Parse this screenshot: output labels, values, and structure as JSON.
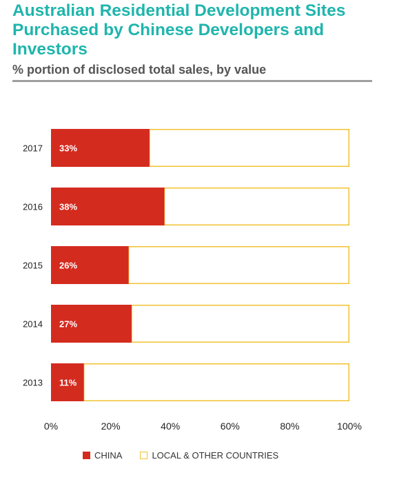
{
  "chart_data": {
    "type": "bar",
    "orientation": "horizontal",
    "stacked": true,
    "title": "Australian Residential Development Sites Purchased by Chinese Developers and Investors",
    "subtitle": "% portion of disclosed total sales, by value",
    "categories": [
      "2017",
      "2016",
      "2015",
      "2014",
      "2013"
    ],
    "series": [
      {
        "name": "CHINA",
        "values": [
          33,
          38,
          26,
          27,
          11
        ],
        "labels": [
          "33%",
          "38%",
          "26%",
          "27%",
          "11%"
        ]
      },
      {
        "name": "LOCAL & OTHER COUNTRIES",
        "values": [
          67,
          62,
          74,
          73,
          89
        ]
      }
    ],
    "xlim": [
      0,
      100
    ],
    "xticks": [
      "0%",
      "20%",
      "40%",
      "60%",
      "80%",
      "100%"
    ],
    "grid": false,
    "legend_position": "bottom",
    "colors": {
      "china": "#d42b1f",
      "local": "#f2c230"
    }
  }
}
